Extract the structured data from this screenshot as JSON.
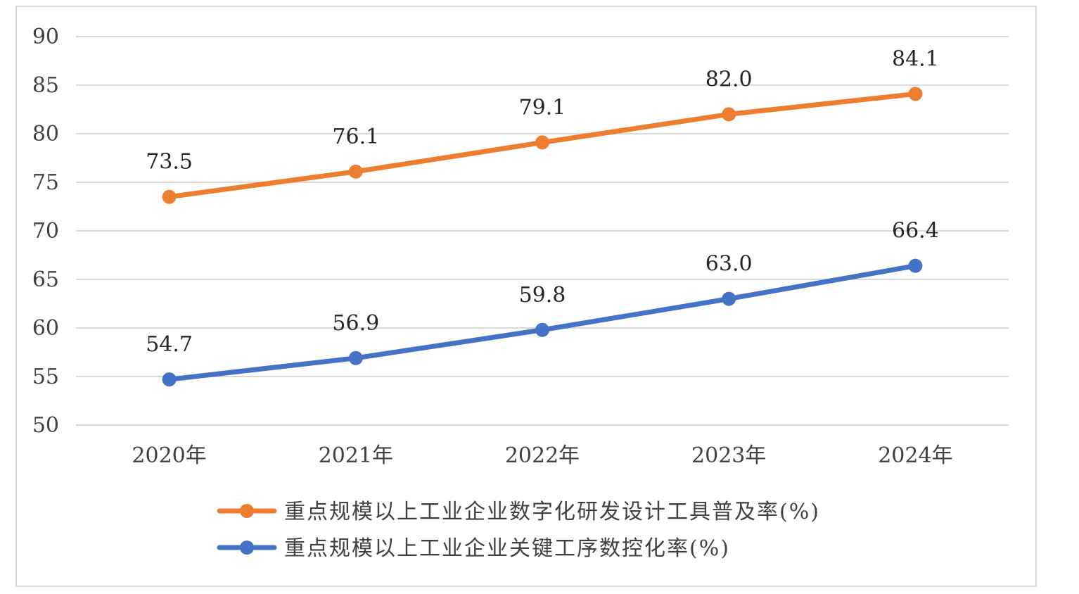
{
  "chart_data": {
    "type": "line",
    "categories": [
      "2020年",
      "2021年",
      "2022年",
      "2023年",
      "2024年"
    ],
    "ylim": [
      50,
      90
    ],
    "yticks": [
      50,
      55,
      60,
      65,
      70,
      75,
      80,
      85,
      90
    ],
    "grid": true,
    "legend_position": "bottom",
    "series": [
      {
        "name": "重点规模以上工业企业数字化研发设计工具普及率(%)",
        "color": "#ED7D31",
        "values": [
          73.5,
          76.1,
          79.1,
          82.0,
          84.1
        ],
        "labels": [
          "73.5",
          "76.1",
          "79.1",
          "82.0",
          "84.1"
        ]
      },
      {
        "name": "重点规模以上工业企业关键工序数控化率(%)",
        "color": "#4472C4",
        "values": [
          54.7,
          56.9,
          59.8,
          63.0,
          66.4
        ],
        "labels": [
          "54.7",
          "56.9",
          "59.8",
          "63.0",
          "66.4"
        ]
      }
    ]
  }
}
